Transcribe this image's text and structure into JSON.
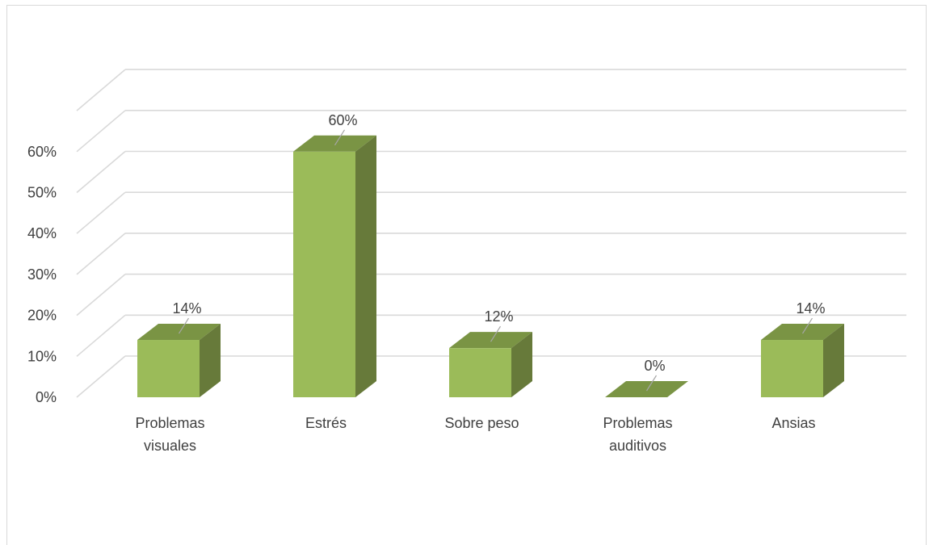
{
  "chart_data": {
    "type": "bar",
    "categories": [
      [
        "Problemas",
        "visuales"
      ],
      [
        "Estrés"
      ],
      [
        "Sobre peso"
      ],
      [
        "Problemas",
        "auditivos"
      ],
      [
        "Ansias"
      ]
    ],
    "values": [
      14,
      60,
      12,
      0,
      14
    ],
    "data_labels": [
      "14%",
      "60%",
      "12%",
      "0%",
      "14%"
    ],
    "y_ticks": [
      "0%",
      "10%",
      "20%",
      "30%",
      "40%",
      "50%",
      "60%"
    ],
    "ylim": [
      0,
      70
    ],
    "grid": true,
    "style": "3d-column",
    "colors": {
      "front": "#9bbb59",
      "side": "#677a3a",
      "top": "#7a9444",
      "grid": "#d9d9d9",
      "label_line": "#a6a6a6"
    }
  }
}
